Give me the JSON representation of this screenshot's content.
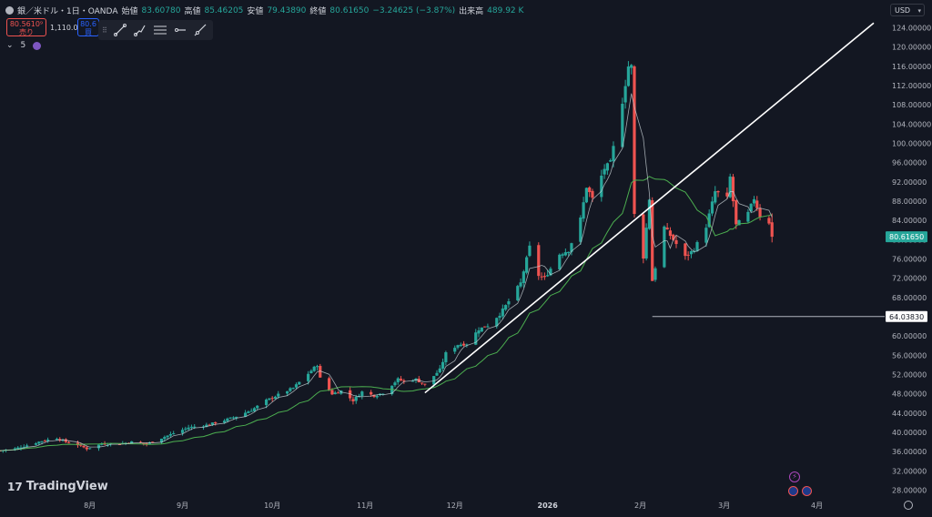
{
  "header": {
    "symbol_title": "銀／米ドル・1日・OANDA",
    "open_label": "始値",
    "open_value": "83.60780",
    "high_label": "高値",
    "high_value": "85.46205",
    "low_label": "安値",
    "low_value": "79.43890",
    "close_label": "終値",
    "close_value": "80.61650",
    "change_value": "−3.24625 (−3.87%)",
    "volume_label": "出来高",
    "volume_value": "489.92 K"
  },
  "trade": {
    "sell_price": "80.5610⁹",
    "sell_label": "売り",
    "spread": "1,110.0",
    "buy_price": "80.6",
    "buy_label": "買"
  },
  "indicator": {
    "collapse_arrow": "⌄",
    "count": "5"
  },
  "currency_button": "USD",
  "branding": {
    "mark": "17",
    "name": "TradingView"
  },
  "events": {
    "bolt": "⚡"
  },
  "colors": {
    "up": "#26a69a",
    "down": "#ef5350",
    "ma": "#4caf50",
    "background": "#131722",
    "drawing": "#ffffff"
  },
  "chart_data": {
    "type": "candlestick",
    "symbol": "銀／米ドル・1日・OANDA",
    "ylim": [
      26,
      126
    ],
    "y_ticks": [
      "28.00000",
      "32.00000",
      "36.00000",
      "40.00000",
      "44.00000",
      "48.00000",
      "52.00000",
      "56.00000",
      "60.00000",
      "64.00000",
      "68.00000",
      "72.00000",
      "76.00000",
      "80.00000",
      "84.00000",
      "88.00000",
      "92.00000",
      "96.00000",
      "100.00000",
      "104.00000",
      "108.00000",
      "112.00000",
      "116.00000",
      "120.00000",
      "124.00000"
    ],
    "x_ticks": [
      {
        "label": "8月",
        "x": "2025-08-01"
      },
      {
        "label": "9月",
        "x": "2025-09-01"
      },
      {
        "label": "10月",
        "x": "2025-10-01"
      },
      {
        "label": "11月",
        "x": "2025-11-01"
      },
      {
        "label": "12月",
        "x": "2025-12-01"
      },
      {
        "label": "2026",
        "x": "2026-01-01"
      },
      {
        "label": "2月",
        "x": "2026-02-01"
      },
      {
        "label": "3月",
        "x": "2026-03-01"
      },
      {
        "label": "4月",
        "x": "2026-04-01"
      }
    ],
    "x_range": [
      "2025-07-02",
      "2026-04-20"
    ],
    "close_series": [
      [
        "2025-07-02",
        36.2
      ],
      [
        "2025-07-07",
        36.6
      ],
      [
        "2025-07-11",
        37.3
      ],
      [
        "2025-07-16",
        38.2
      ],
      [
        "2025-07-21",
        38.8
      ],
      [
        "2025-07-24",
        38.0
      ],
      [
        "2025-07-28",
        37.4
      ],
      [
        "2025-07-31",
        36.6
      ],
      [
        "2025-08-05",
        37.6
      ],
      [
        "2025-08-11",
        37.6
      ],
      [
        "2025-08-15",
        38.0
      ],
      [
        "2025-08-20",
        37.6
      ],
      [
        "2025-08-25",
        38.8
      ],
      [
        "2025-08-29",
        39.8
      ],
      [
        "2025-09-03",
        41.0
      ],
      [
        "2025-09-09",
        41.5
      ],
      [
        "2025-09-15",
        42.5
      ],
      [
        "2025-09-19",
        43.3
      ],
      [
        "2025-09-24",
        44.6
      ],
      [
        "2025-09-29",
        46.6
      ],
      [
        "2025-10-03",
        47.8
      ],
      [
        "2025-10-08",
        49.2
      ],
      [
        "2025-10-13",
        52.2
      ],
      [
        "2025-10-16",
        54.0
      ],
      [
        "2025-10-17",
        51.2
      ],
      [
        "2025-10-21",
        48.0
      ],
      [
        "2025-10-24",
        48.6
      ],
      [
        "2025-10-28",
        46.6
      ],
      [
        "2025-10-31",
        48.4
      ],
      [
        "2025-11-04",
        47.6
      ],
      [
        "2025-11-07",
        48.2
      ],
      [
        "2025-11-12",
        51.0
      ],
      [
        "2025-11-14",
        50.6
      ],
      [
        "2025-11-18",
        51.0
      ],
      [
        "2025-11-21",
        49.8
      ],
      [
        "2025-11-26",
        53.0
      ],
      [
        "2025-11-28",
        56.4
      ],
      [
        "2025-12-02",
        58.2
      ],
      [
        "2025-12-05",
        58.4
      ],
      [
        "2025-12-09",
        61.4
      ],
      [
        "2025-12-12",
        62.2
      ],
      [
        "2025-12-16",
        64.5
      ],
      [
        "2025-12-19",
        67.2
      ],
      [
        "2025-12-23",
        71.0
      ],
      [
        "2025-12-26",
        78.5
      ],
      [
        "2025-12-29",
        72.6
      ],
      [
        "2025-12-31",
        72.0
      ],
      [
        "2026-01-05",
        77.0
      ],
      [
        "2026-01-08",
        77.8
      ],
      [
        "2026-01-12",
        84.3
      ],
      [
        "2026-01-14",
        91.0
      ],
      [
        "2026-01-16",
        88.5
      ],
      [
        "2026-01-20",
        94.8
      ],
      [
        "2026-01-22",
        96.0
      ],
      [
        "2026-01-26",
        108.7
      ],
      [
        "2026-01-28",
        116.0
      ],
      [
        "2026-01-29",
        116.0
      ],
      [
        "2026-01-30",
        85.2
      ],
      [
        "2026-02-02",
        76.4
      ],
      [
        "2026-02-04",
        88.5
      ],
      [
        "2026-02-05",
        71.5
      ],
      [
        "2026-02-09",
        82.6
      ],
      [
        "2026-02-12",
        80.0
      ],
      [
        "2026-02-16",
        76.4
      ],
      [
        "2026-02-19",
        78.0
      ],
      [
        "2026-02-23",
        82.8
      ],
      [
        "2026-02-26",
        90.0
      ],
      [
        "2026-03-02",
        88.6
      ],
      [
        "2026-03-03",
        93.0
      ],
      [
        "2026-03-05",
        83.0
      ],
      [
        "2026-03-09",
        85.5
      ],
      [
        "2026-03-11",
        88.6
      ],
      [
        "2026-03-13",
        84.9
      ],
      [
        "2026-03-16",
        83.6
      ],
      [
        "2026-03-17",
        80.6
      ]
    ],
    "last_price": "80.61650",
    "horizontal_line": {
      "value": 64.0383,
      "label": "64.03830",
      "from": "2026-02-05"
    },
    "trend_line": {
      "from": [
        "2025-11-21",
        48.2
      ],
      "to": [
        "2026-04-20",
        125.0
      ]
    },
    "moving_average": {
      "name": "MA",
      "length": 20
    },
    "grid": false,
    "logo_position": "bottom-left"
  }
}
